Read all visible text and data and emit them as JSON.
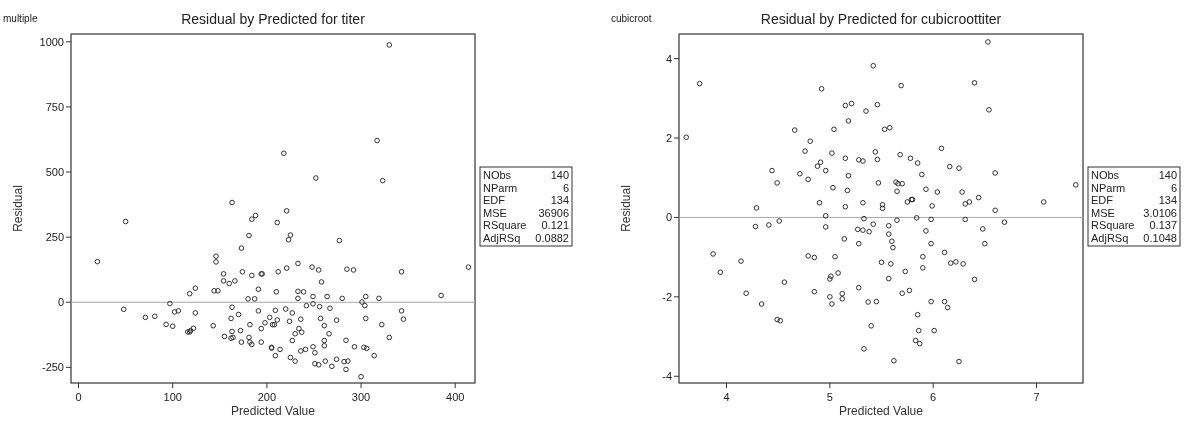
{
  "chart_data": [
    {
      "type": "scatter",
      "title": "Residual by Predicted for titer",
      "subtitle": "multiple",
      "xlabel": "Predicted Value",
      "ylabel": "Residual",
      "xlim": [
        -8,
        421
      ],
      "ylim": [
        -310,
        1030
      ],
      "xticks": [
        0,
        100,
        200,
        300,
        400
      ],
      "yticks": [
        -250,
        0,
        250,
        500,
        750,
        1000
      ],
      "marker": "circle",
      "grid": false,
      "ref_lines": [
        {
          "axis": "y",
          "value": 0,
          "color": "#a8a8a8"
        }
      ],
      "annotations": [
        "NObs 140",
        "NParm 6",
        "EDF 134",
        "MSE 36906",
        "RSquare 0.121",
        "AdjRSq 0.0882"
      ],
      "series": [
        {
          "color": "#333333",
          "x": [
            20,
            50,
            48,
            71,
            81,
            93,
            97,
            100,
            102,
            106,
            116,
            118,
            119,
            122,
            118,
            124,
            124,
            143,
            144,
            148,
            146,
            146,
            154,
            154,
            155,
            160,
            166,
            163,
            163,
            162,
            170,
            163,
            164,
            162,
            172,
            173,
            174,
            173,
            181,
            184,
            188,
            184,
            180,
            187,
            182,
            181,
            182,
            184,
            194,
            195,
            191,
            191,
            194,
            194,
            198,
            203,
            205,
            206,
            330,
            317,
            323,
            218,
            252,
            221,
            211,
            225,
            223,
            277,
            233,
            221,
            212,
            248,
            255,
            258,
            285,
            292,
            343,
            414,
            385,
            210,
            233,
            239,
            233,
            249,
            264,
            280,
            305,
            319,
            301,
            304,
            249,
            242,
            256,
            267,
            209,
            220,
            227,
            211,
            208,
            224,
            236,
            257,
            274,
            305,
            343,
            345,
            322,
            261,
            230,
            234,
            237,
            227,
            266,
            261,
            261,
            284,
            330,
            205,
            214,
            209,
            236,
            241,
            249,
            251,
            225,
            230,
            251,
            255,
            262,
            269,
            274,
            282,
            286,
            284,
            293,
            303,
            306,
            314,
            300
          ],
          "values": [
            156,
            310,
            -27,
            -58,
            -54,
            -85,
            -5,
            -92,
            -37,
            -33,
            -114,
            -114,
            -109,
            -100,
            33,
            54,
            -41,
            -90,
            44,
            44,
            177,
            155,
            109,
            82,
            -131,
            72,
            82,
            383,
            -19,
            -62,
            -47,
            -112,
            -135,
            -138,
            -109,
            -153,
            117,
            208,
            256,
            319,
            333,
            103,
            13,
            13,
            -86,
            -135,
            -153,
            -162,
            109,
            109,
            50,
            -33,
            -101,
            -153,
            -79,
            -58,
            -176,
            -86,
            988,
            621,
            467,
            572,
            477,
            351,
            306,
            258,
            240,
            237,
            149,
            131,
            117,
            135,
            124,
            78,
            127,
            124,
            117,
            135,
            26,
            40,
            42,
            40,
            15,
            22,
            22,
            15,
            22,
            15,
            1,
            -13,
            -6,
            -13,
            -17,
            -23,
            -31,
            -26,
            -41,
            -68,
            -86,
            -73,
            -65,
            -62,
            -69,
            -62,
            -33,
            -65,
            -86,
            -90,
            -121,
            -101,
            -115,
            -147,
            -121,
            -147,
            -167,
            -146,
            -135,
            -173,
            -181,
            -205,
            -187,
            -181,
            -171,
            -194,
            -212,
            -226,
            -236,
            -240,
            -226,
            -246,
            -219,
            -228,
            -226,
            -258,
            -171,
            -173,
            -177,
            -205,
            -286
          ]
        }
      ]
    },
    {
      "type": "scatter",
      "title": "Residual by Predicted for cubicroottiter",
      "subtitle": "cubicroot",
      "xlabel": "Predicted Value",
      "ylabel": "Residual",
      "xlim": [
        3.54,
        7.45
      ],
      "ylim": [
        -4.17,
        4.62
      ],
      "xticks": [
        4,
        5,
        6,
        7
      ],
      "yticks": [
        -4,
        -2,
        0,
        2,
        4
      ],
      "marker": "circle",
      "grid": false,
      "ref_lines": [
        {
          "axis": "y",
          "value": 0,
          "color": "#a8a8a8"
        }
      ],
      "annotations": [
        "NObs 140",
        "NParm 6",
        "EDF 134",
        "MSE 3.0106",
        "RSquare 0.137",
        "AdjRSq 0.1048"
      ],
      "series": [
        {
          "color": "#333333",
          "x": [
            3.61,
            3.74,
            3.87,
            3.94,
            4.14,
            4.19,
            4.28,
            4.29,
            4.34,
            4.41,
            4.51,
            4.44,
            4.49,
            4.49,
            4.52,
            4.56,
            4.66,
            4.71,
            4.76,
            4.81,
            4.79,
            4.79,
            4.85,
            4.85,
            4.88,
            4.91,
            4.92,
            4.9,
            4.96,
            4.96,
            4.96,
            5.02,
            5.04,
            5.03,
            5.05,
            5.08,
            5.0,
            5.01,
            5.0,
            5.02,
            5.12,
            5.12,
            6.53,
            5.42,
            6.4,
            5.69,
            5.15,
            5.21,
            5.46,
            5.35,
            6.54,
            5.18,
            5.53,
            5.58,
            6.08,
            5.44,
            5.15,
            5.28,
            5.32,
            5.46,
            5.68,
            5.78,
            5.85,
            6.16,
            6.25,
            6.6,
            5.18,
            5.89,
            5.47,
            5.64,
            5.66,
            5.7,
            5.17,
            5.65,
            5.93,
            6.04,
            6.28,
            6.44,
            7.38,
            7.07,
            5.79,
            5.8,
            5.75,
            5.15,
            5.32,
            5.51,
            5.51,
            5.99,
            6.31,
            6.35,
            6.6,
            5.33,
            5.65,
            5.84,
            5.98,
            6.31,
            6.69,
            5.42,
            5.27,
            5.32,
            5.38,
            5.57,
            5.57,
            5.93,
            6.48,
            5.14,
            5.28,
            5.6,
            5.61,
            5.98,
            6.5,
            6.11,
            5.9,
            5.5,
            5.59,
            6.17,
            6.22,
            6.29,
            5.9,
            5.73,
            5.57,
            6.4,
            5.28,
            5.7,
            5.77,
            5.37,
            5.45,
            5.98,
            6.11,
            6.14,
            5.85,
            5.4,
            5.86,
            6.01,
            5.83,
            5.87,
            5.33,
            5.62,
            6.25
          ],
          "values": [
            2.02,
            3.37,
            -0.92,
            -1.38,
            -1.1,
            -1.91,
            -0.23,
            0.24,
            -2.18,
            -0.19,
            -0.09,
            1.18,
            0.87,
            -2.57,
            -2.6,
            -1.63,
            2.2,
            1.1,
            1.67,
            1.92,
            0.96,
            -0.97,
            -1.01,
            -1.87,
            1.29,
            1.39,
            3.24,
            0.37,
            1.18,
            0.04,
            -0.24,
            1.62,
            2.22,
            0.75,
            -0.99,
            -1.4,
            -1.55,
            -1.48,
            -2.0,
            -2.18,
            -1.92,
            -2.05,
            4.42,
            3.82,
            3.39,
            3.32,
            2.82,
            2.87,
            2.84,
            2.68,
            2.71,
            2.43,
            2.22,
            2.26,
            1.74,
            1.65,
            1.49,
            1.45,
            1.42,
            1.46,
            1.58,
            1.49,
            1.37,
            1.28,
            1.24,
            1.12,
            1.05,
            1.08,
            0.87,
            0.89,
            0.85,
            0.85,
            0.68,
            0.66,
            0.71,
            0.64,
            0.64,
            0.5,
            0.82,
            0.39,
            0.45,
            0.45,
            0.39,
            0.27,
            0.37,
            0.32,
            0.23,
            0.29,
            0.34,
            0.39,
            0.18,
            -0.03,
            -0.07,
            -0.01,
            -0.05,
            -0.05,
            -0.12,
            -0.17,
            -0.3,
            -0.32,
            -0.36,
            -0.21,
            -0.42,
            -0.34,
            -0.29,
            -0.54,
            -0.66,
            -0.6,
            -0.76,
            -0.66,
            -0.66,
            -0.88,
            -0.99,
            -1.13,
            -1.17,
            -1.15,
            -1.12,
            -1.17,
            -1.27,
            -1.36,
            -1.54,
            -1.56,
            -1.77,
            -1.91,
            -1.84,
            -2.13,
            -2.12,
            -2.12,
            -2.12,
            -2.27,
            -2.45,
            -2.73,
            -2.85,
            -2.85,
            -3.1,
            -3.18,
            -3.31,
            -3.61,
            -3.63
          ]
        }
      ]
    }
  ]
}
